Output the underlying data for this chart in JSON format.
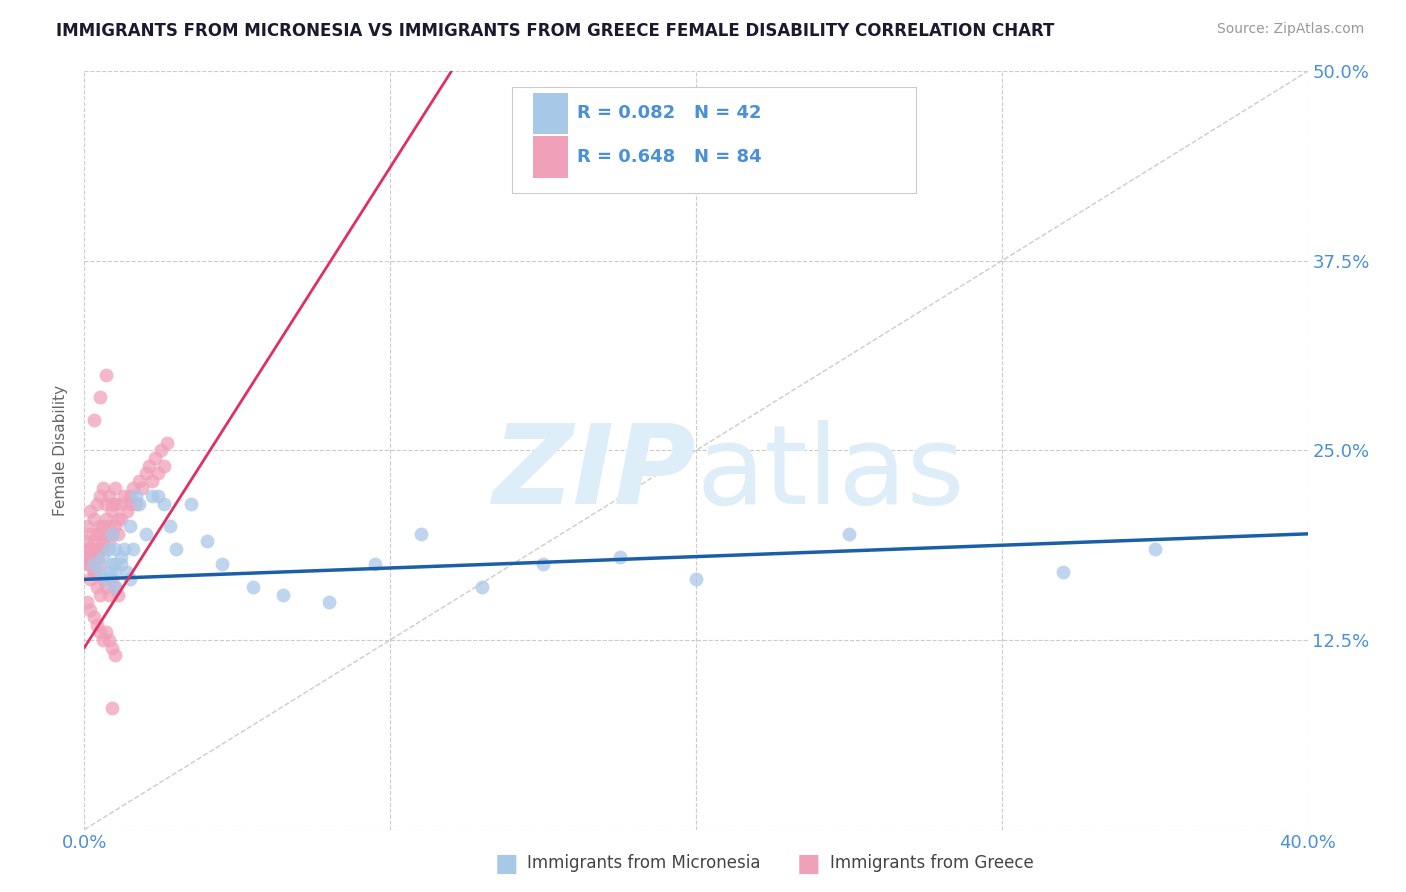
{
  "title": "IMMIGRANTS FROM MICRONESIA VS IMMIGRANTS FROM GREECE FEMALE DISABILITY CORRELATION CHART",
  "source": "Source: ZipAtlas.com",
  "ylabel": "Female Disability",
  "xlim": [
    0.0,
    0.4
  ],
  "ylim": [
    0.0,
    0.5
  ],
  "xticks": [
    0.0,
    0.1,
    0.2,
    0.3,
    0.4
  ],
  "yticks": [
    0.0,
    0.125,
    0.25,
    0.375,
    0.5
  ],
  "legend_r1": "R = 0.082",
  "legend_n1": "N = 42",
  "legend_r2": "R = 0.648",
  "legend_n2": "N = 84",
  "color_micronesia": "#a8c8e8",
  "color_greece": "#f0a0b8",
  "line_color_micronesia": "#1a5fa8",
  "line_color_greece": "#e03060",
  "title_color": "#1a1a2e",
  "source_color": "#999999",
  "axis_label_color": "#666666",
  "tick_color": "#4a90d9",
  "watermark_color": "#ddeef8",
  "background_color": "#ffffff",
  "grid_color": "#cccccc",
  "micronesia_x": [
    0.003,
    0.005,
    0.006,
    0.007,
    0.008,
    0.008,
    0.009,
    0.009,
    0.01,
    0.01,
    0.01,
    0.01,
    0.012,
    0.012,
    0.013,
    0.014,
    0.015,
    0.015,
    0.016,
    0.017,
    0.018,
    0.02,
    0.022,
    0.024,
    0.026,
    0.028,
    0.03,
    0.035,
    0.04,
    0.045,
    0.055,
    0.065,
    0.08,
    0.095,
    0.11,
    0.13,
    0.15,
    0.175,
    0.2,
    0.25,
    0.32,
    0.35
  ],
  "micronesia_y": [
    0.175,
    0.17,
    0.18,
    0.165,
    0.185,
    0.17,
    0.175,
    0.195,
    0.16,
    0.17,
    0.175,
    0.185,
    0.175,
    0.18,
    0.185,
    0.17,
    0.165,
    0.2,
    0.185,
    0.22,
    0.215,
    0.195,
    0.22,
    0.22,
    0.215,
    0.2,
    0.185,
    0.215,
    0.19,
    0.175,
    0.16,
    0.155,
    0.15,
    0.175,
    0.195,
    0.16,
    0.175,
    0.18,
    0.165,
    0.195,
    0.17,
    0.185
  ],
  "greece_x": [
    0.001,
    0.001,
    0.001,
    0.001,
    0.002,
    0.002,
    0.002,
    0.002,
    0.003,
    0.003,
    0.003,
    0.003,
    0.004,
    0.004,
    0.004,
    0.005,
    0.005,
    0.005,
    0.005,
    0.006,
    0.006,
    0.006,
    0.007,
    0.007,
    0.008,
    0.008,
    0.009,
    0.009,
    0.01,
    0.01,
    0.011,
    0.011,
    0.012,
    0.012,
    0.013,
    0.014,
    0.015,
    0.015,
    0.016,
    0.017,
    0.018,
    0.019,
    0.02,
    0.021,
    0.022,
    0.023,
    0.024,
    0.025,
    0.026,
    0.027,
    0.002,
    0.003,
    0.004,
    0.005,
    0.006,
    0.007,
    0.008,
    0.009,
    0.01,
    0.011,
    0.001,
    0.002,
    0.003,
    0.004,
    0.005,
    0.006,
    0.007,
    0.008,
    0.009,
    0.01,
    0.001,
    0.002,
    0.003,
    0.004,
    0.005,
    0.006,
    0.007,
    0.008,
    0.009,
    0.01,
    0.003,
    0.005,
    0.007,
    0.009
  ],
  "greece_y": [
    0.175,
    0.185,
    0.19,
    0.18,
    0.175,
    0.185,
    0.18,
    0.195,
    0.17,
    0.185,
    0.175,
    0.19,
    0.18,
    0.195,
    0.185,
    0.175,
    0.195,
    0.185,
    0.2,
    0.19,
    0.2,
    0.185,
    0.195,
    0.205,
    0.19,
    0.2,
    0.195,
    0.21,
    0.2,
    0.215,
    0.205,
    0.195,
    0.215,
    0.205,
    0.22,
    0.21,
    0.22,
    0.215,
    0.225,
    0.215,
    0.23,
    0.225,
    0.235,
    0.24,
    0.23,
    0.245,
    0.235,
    0.25,
    0.24,
    0.255,
    0.165,
    0.17,
    0.16,
    0.155,
    0.165,
    0.16,
    0.155,
    0.165,
    0.16,
    0.155,
    0.2,
    0.21,
    0.205,
    0.215,
    0.22,
    0.225,
    0.215,
    0.22,
    0.215,
    0.225,
    0.15,
    0.145,
    0.14,
    0.135,
    0.13,
    0.125,
    0.13,
    0.125,
    0.12,
    0.115,
    0.27,
    0.285,
    0.3,
    0.08
  ],
  "gre_line_x": [
    0.0,
    0.12
  ],
  "gre_line_y": [
    0.12,
    0.5
  ],
  "mic_line_x": [
    0.0,
    0.4
  ],
  "mic_line_y": [
    0.165,
    0.195
  ]
}
